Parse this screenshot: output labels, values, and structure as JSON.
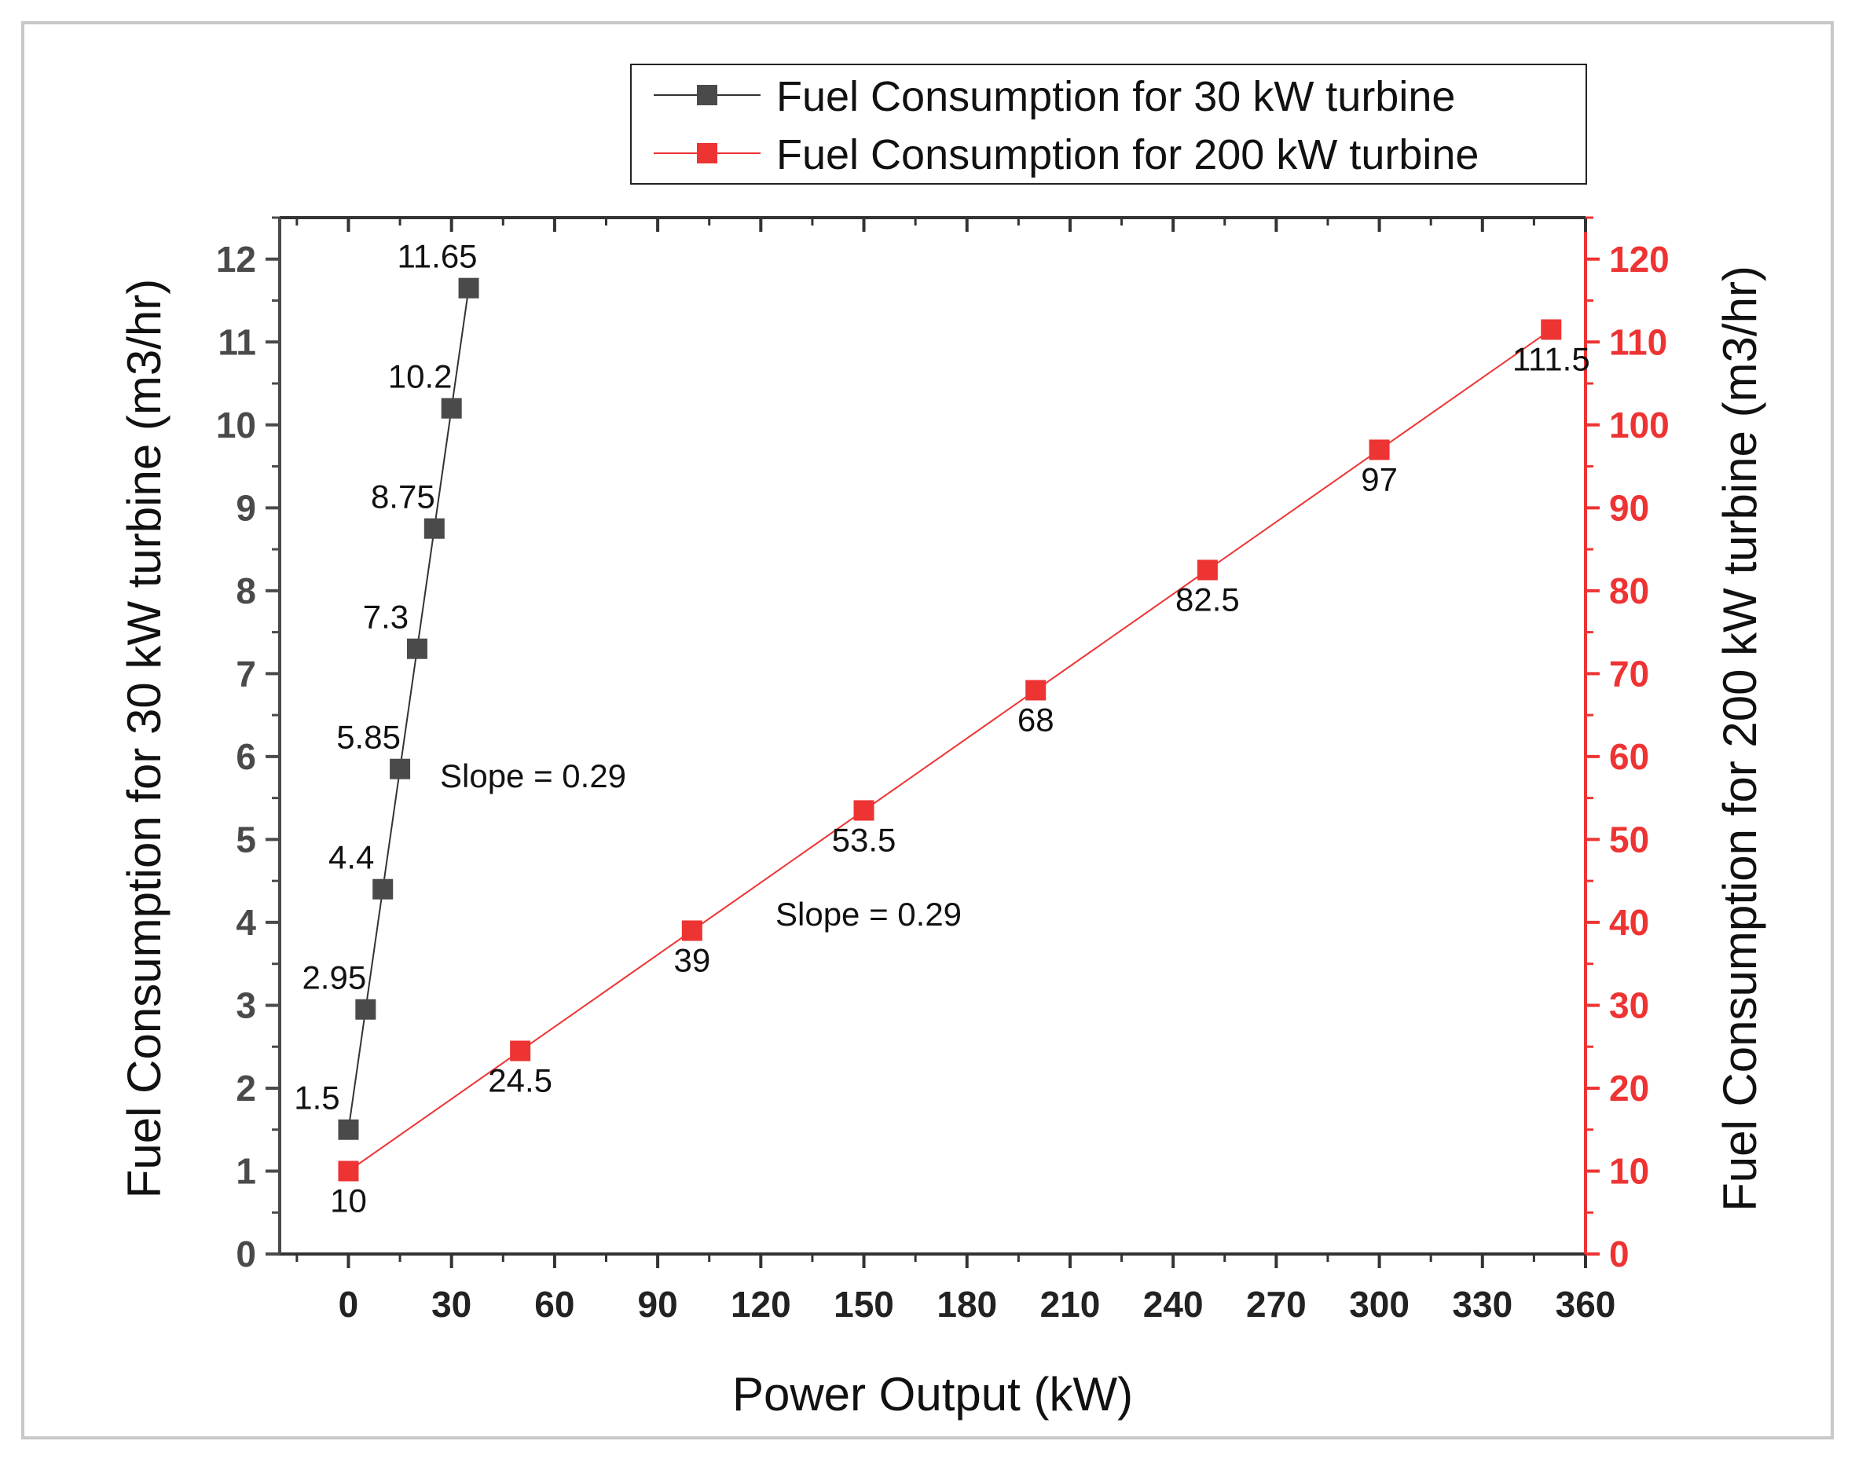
{
  "chart_data": {
    "type": "line",
    "title": "",
    "xlabel": "Power Output (kW)",
    "ylabel": "Fuel Consumption for 30 kW turbine (m3/hr)",
    "y2label": "Fuel Consumption for 200 kW turbine (m3/hr)",
    "xlim": [
      -20,
      360
    ],
    "ylim": [
      0,
      12.5
    ],
    "y2lim": [
      0,
      125
    ],
    "xticks": [
      0,
      30,
      60,
      90,
      120,
      150,
      180,
      210,
      240,
      270,
      300,
      330,
      360
    ],
    "yticks": [
      0,
      1,
      2,
      3,
      4,
      5,
      6,
      7,
      8,
      9,
      10,
      11,
      12
    ],
    "y2ticks": [
      0,
      10,
      20,
      30,
      40,
      50,
      60,
      70,
      80,
      90,
      100,
      110,
      120
    ],
    "grid": false,
    "legend_position": "top-right",
    "series": [
      {
        "name": "Fuel Consumption for 30 kW turbine",
        "axis": "left",
        "color": "#4a4a4a",
        "line_color": "#333333",
        "marker": "square",
        "x": [
          0,
          5,
          10,
          15,
          20,
          25,
          30,
          35
        ],
        "y": [
          1.5,
          2.95,
          4.4,
          5.85,
          7.3,
          8.75,
          10.2,
          11.65
        ],
        "labels": [
          "1.5",
          "2.95",
          "4.4",
          "5.85",
          "7.3",
          "8.75",
          "10.2",
          "11.65"
        ]
      },
      {
        "name": "Fuel Consumption for 200 kW turbine",
        "axis": "right",
        "color": "#ee3333",
        "line_color": "#ee3333",
        "marker": "square",
        "x": [
          0,
          50,
          100,
          150,
          200,
          250,
          300,
          350
        ],
        "y": [
          10,
          24.5,
          39,
          53.5,
          68,
          82.5,
          97,
          111.5
        ],
        "labels": [
          "10",
          "24.5",
          "39",
          "53.5",
          "68",
          "82.5",
          "97",
          "111.5"
        ]
      }
    ],
    "annotations": [
      "Slope = 0.29",
      "Slope = 0.29"
    ],
    "left_axis_color": "#4a4a4a",
    "right_axis_color": "#ee3333"
  }
}
